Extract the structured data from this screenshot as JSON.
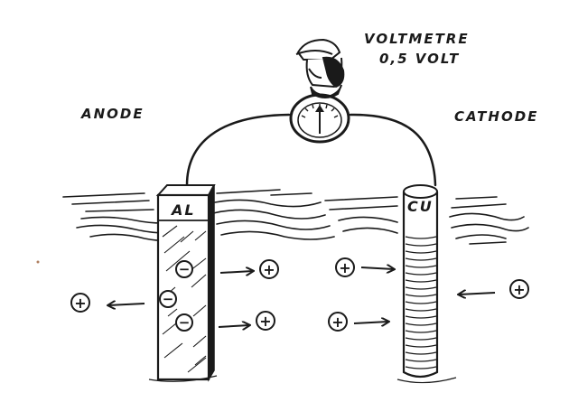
{
  "labels": {
    "voltmeter_line1": "VOLTMETRE",
    "voltmeter_line2": "0,5 VOLT",
    "anode": "ANODE",
    "cathode": "CATHODE",
    "al": "AL",
    "cu": "CU"
  },
  "symbols": {
    "cation": "+",
    "electron": "−"
  },
  "icons": {
    "voltmeter": "gauge-icon",
    "observer": "person-head-icon"
  },
  "colors": {
    "ink": "#1a1a1a",
    "paper": "#ffffff"
  }
}
